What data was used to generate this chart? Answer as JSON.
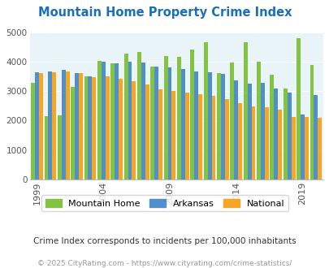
{
  "title": "Mountain Home Property Crime Index",
  "years": [
    1999,
    2000,
    2001,
    2002,
    2003,
    2004,
    2005,
    2006,
    2007,
    2008,
    2009,
    2010,
    2011,
    2012,
    2013,
    2014,
    2015,
    2016,
    2017,
    2018,
    2019,
    2020
  ],
  "mountain_home": [
    3290,
    2150,
    2190,
    3150,
    3510,
    4020,
    3950,
    4280,
    4320,
    3820,
    4190,
    4150,
    4400,
    4650,
    3600,
    3970,
    4650,
    4010,
    3560,
    3090,
    4800,
    3890
  ],
  "arkansas": [
    3650,
    3660,
    3710,
    3620,
    3490,
    4010,
    3950,
    3990,
    3970,
    3820,
    3810,
    3750,
    3680,
    3630,
    3590,
    3360,
    3260,
    3280,
    3080,
    2960,
    2200,
    2870
  ],
  "national": [
    3610,
    3650,
    3660,
    3600,
    3480,
    3490,
    3420,
    3340,
    3230,
    3050,
    3010,
    2950,
    2890,
    2850,
    2740,
    2600,
    2490,
    2460,
    2360,
    2120,
    2130,
    2110
  ],
  "colors": {
    "mountain_home": "#82c341",
    "arkansas": "#4f8fcc",
    "national": "#f5a623"
  },
  "ylim": [
    0,
    5000
  ],
  "yticks": [
    0,
    1000,
    2000,
    3000,
    4000,
    5000
  ],
  "background_color": "#e8f4f8",
  "title_color": "#1a6fba",
  "subtitle": "Crime Index corresponds to incidents per 100,000 inhabitants",
  "footer": "© 2025 CityRating.com - https://www.cityrating.com/crime-statistics/",
  "legend_labels": [
    "Mountain Home",
    "Arkansas",
    "National"
  ],
  "labeled_years": [
    1999,
    2004,
    2009,
    2014,
    2019
  ]
}
